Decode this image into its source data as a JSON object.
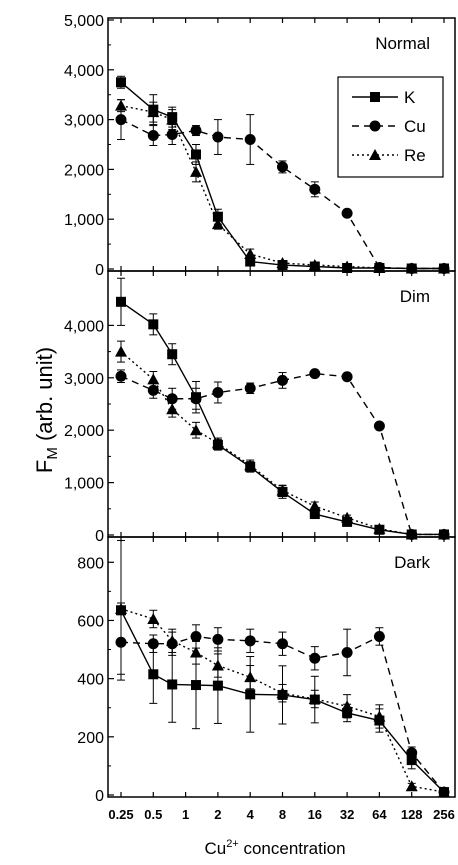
{
  "ylabel": {
    "main": "F",
    "sub": "M",
    "rest": " (arb. unit)"
  },
  "xlabel": {
    "main": "Cu",
    "sup": "2+",
    "rest": " concentration"
  },
  "x_tick_labels": [
    "0.25",
    "0.5",
    "1",
    "2",
    "4",
    "8",
    "16",
    "32",
    "64",
    "128",
    "256"
  ],
  "legend": [
    "K",
    "Cu",
    "Re"
  ],
  "chart_data": [
    {
      "type": "line",
      "title": "Normal",
      "x": [
        0.25,
        0.5,
        0.75,
        1.25,
        2,
        4,
        8,
        16,
        32,
        64,
        128,
        256
      ],
      "ylim": [
        0,
        5000
      ],
      "y_ticks": [
        0,
        1000,
        2000,
        3000,
        4000,
        5000
      ],
      "y_tick_labels": [
        "0",
        "1,000",
        "2,000",
        "3,000",
        "4,000",
        "5,000"
      ],
      "series": [
        {
          "name": "K",
          "values": [
            3750,
            3200,
            3050,
            2300,
            1050,
            150,
            80,
            50,
            20,
            20,
            10,
            10
          ],
          "errors": [
            120,
            300,
            200,
            200,
            150,
            50,
            40,
            30,
            20,
            20,
            10,
            10
          ]
        },
        {
          "name": "Cu",
          "values": [
            3000,
            2680,
            2700,
            2780,
            2650,
            2600,
            2050,
            1600,
            1120,
            30,
            10,
            10
          ],
          "errors": [
            400,
            200,
            200,
            100,
            350,
            500,
            120,
            150,
            50,
            20,
            10,
            10
          ]
        },
        {
          "name": "Re",
          "values": [
            3280,
            3150,
            3000,
            1950,
            900,
            300,
            120,
            80,
            50,
            20,
            10,
            10
          ],
          "errors": [
            120,
            200,
            200,
            200,
            100,
            100,
            50,
            40,
            30,
            20,
            10,
            10
          ]
        }
      ]
    },
    {
      "type": "line",
      "title": "Dim",
      "x": [
        0.25,
        0.5,
        0.75,
        1.25,
        2,
        4,
        8,
        16,
        32,
        64,
        128,
        256
      ],
      "ylim": [
        0,
        5000
      ],
      "y_ticks": [
        0,
        1000,
        2000,
        3000,
        4000
      ],
      "y_tick_labels": [
        "0",
        "1,000",
        "2,000",
        "3,000",
        "4,000"
      ],
      "series": [
        {
          "name": "K",
          "values": [
            4450,
            4020,
            3450,
            2630,
            1720,
            1300,
            820,
            400,
            250,
            100,
            10,
            10
          ],
          "errors": [
            450,
            200,
            200,
            300,
            100,
            100,
            120,
            50,
            40,
            30,
            10,
            10
          ]
        },
        {
          "name": "Cu",
          "values": [
            3030,
            2760,
            2600,
            2600,
            2720,
            2800,
            2950,
            3080,
            3020,
            2080,
            10,
            10
          ],
          "errors": [
            120,
            150,
            200,
            200,
            200,
            100,
            150,
            50,
            50,
            50,
            10,
            10
          ]
        },
        {
          "name": "Re",
          "values": [
            3500,
            2970,
            2400,
            2000,
            1750,
            1330,
            850,
            550,
            330,
            120,
            10,
            10
          ],
          "errors": [
            200,
            150,
            150,
            150,
            100,
            100,
            100,
            80,
            50,
            30,
            10,
            10
          ]
        }
      ]
    },
    {
      "type": "line",
      "title": "Dark",
      "x": [
        0.25,
        0.5,
        0.75,
        1.25,
        2,
        4,
        8,
        16,
        32,
        64,
        128,
        256
      ],
      "ylim": [
        0,
        880
      ],
      "y_ticks": [
        0,
        200,
        400,
        600,
        800
      ],
      "y_tick_labels": [
        "0",
        "200",
        "400",
        "600",
        "800"
      ],
      "series": [
        {
          "name": "K",
          "values": [
            635,
            415,
            380,
            378,
            376,
            346,
            344,
            328,
            282,
            256,
            120,
            10
          ],
          "errors": [
            240,
            100,
            130,
            150,
            130,
            130,
            100,
            80,
            30,
            40,
            30,
            10
          ]
        },
        {
          "name": "Cu",
          "values": [
            525,
            520,
            520,
            545,
            535,
            530,
            520,
            470,
            490,
            545,
            145,
            10
          ],
          "errors": [
            110,
            30,
            40,
            40,
            40,
            40,
            40,
            40,
            80,
            30,
            20,
            10
          ]
        },
        {
          "name": "Re",
          "values": [
            640,
            605,
            530,
            490,
            445,
            405,
            350,
            330,
            305,
            270,
            30,
            10
          ],
          "errors": [
            20,
            30,
            40,
            40,
            40,
            40,
            30,
            30,
            40,
            40,
            10,
            10
          ]
        }
      ]
    }
  ]
}
